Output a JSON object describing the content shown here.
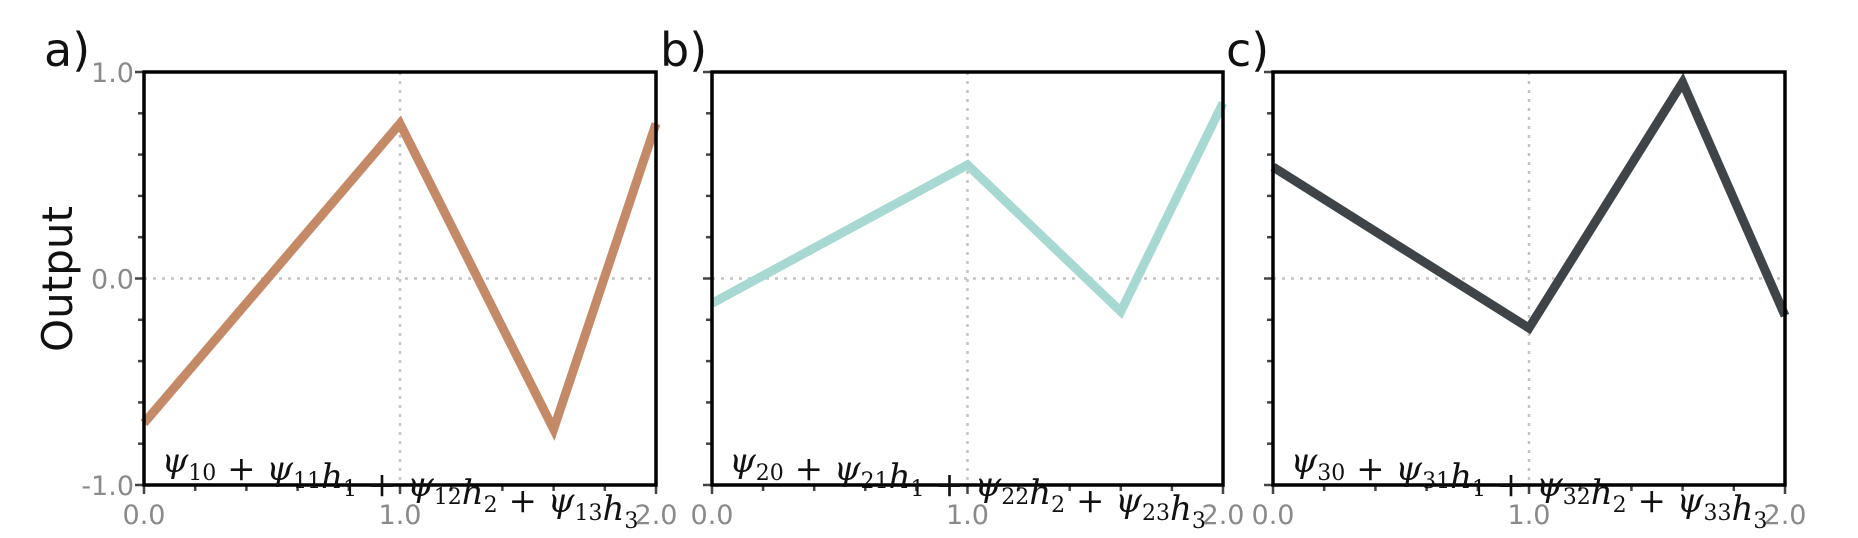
{
  "ylabel": "Output",
  "panels": [
    {
      "label": "a)",
      "formula": {
        "terms": [
          [
            "ψ",
            "10"
          ],
          [
            "ψ",
            "11",
            "h",
            "1"
          ],
          [
            "ψ",
            "12",
            "h",
            "2"
          ],
          [
            "ψ",
            "13",
            "h",
            "3"
          ]
        ]
      }
    },
    {
      "label": "b)",
      "formula": {
        "terms": [
          [
            "ψ",
            "20"
          ],
          [
            "ψ",
            "21",
            "h",
            "1"
          ],
          [
            "ψ",
            "22",
            "h",
            "2"
          ],
          [
            "ψ",
            "23",
            "h",
            "3"
          ]
        ]
      }
    },
    {
      "label": "c)",
      "formula": {
        "terms": [
          [
            "ψ",
            "30"
          ],
          [
            "ψ",
            "31",
            "h",
            "1"
          ],
          [
            "ψ",
            "32",
            "h",
            "2"
          ],
          [
            "ψ",
            "33",
            "h",
            "3"
          ]
        ]
      }
    }
  ],
  "chart_data": [
    {
      "type": "line",
      "panel": "a)",
      "xlim": [
        0.0,
        2.0
      ],
      "ylim": [
        -1.0,
        1.0
      ],
      "xticks": [
        "0.0",
        "1.0",
        "2.0"
      ],
      "yticks": [
        "-1.0",
        "0.0",
        "1.0"
      ],
      "ylabel": "Output",
      "grid": true,
      "color": "#c48a68",
      "x": [
        0.0,
        1.0,
        1.6,
        2.0
      ],
      "y": [
        -0.7,
        0.75,
        -0.73,
        0.75
      ]
    },
    {
      "type": "line",
      "panel": "b)",
      "xlim": [
        0.0,
        2.0
      ],
      "ylim": [
        -1.0,
        1.0
      ],
      "xticks": [
        "0.0",
        "1.0",
        "2.0"
      ],
      "yticks": [],
      "grid": true,
      "color": "#a8d8d2",
      "x": [
        0.0,
        1.0,
        1.6,
        2.0
      ],
      "y": [
        -0.12,
        0.55,
        -0.16,
        0.85
      ]
    },
    {
      "type": "line",
      "panel": "c)",
      "xlim": [
        0.0,
        2.0
      ],
      "ylim": [
        -1.0,
        1.0
      ],
      "xticks": [
        "0.0",
        "1.0",
        "2.0"
      ],
      "yticks": [],
      "grid": true,
      "color": "#3e4448",
      "x": [
        0.0,
        1.0,
        1.6,
        2.0
      ],
      "y": [
        0.54,
        -0.24,
        0.95,
        -0.18
      ]
    }
  ]
}
